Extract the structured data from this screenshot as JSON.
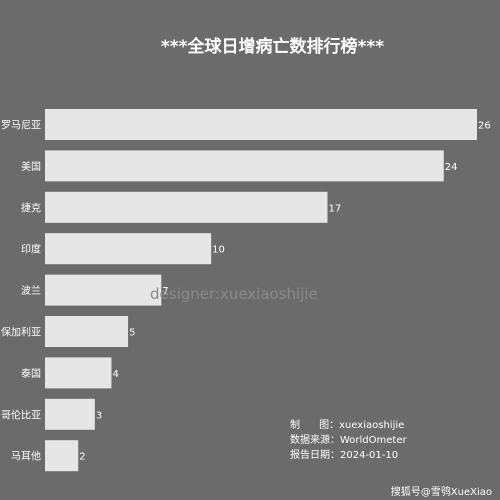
{
  "chart_data": {
    "type": "bar",
    "orientation": "horizontal",
    "title": "***全球日增病亡数排行榜***",
    "categories": [
      "罗马尼亚",
      "美国",
      "捷克",
      "印度",
      "波兰",
      "保加利亚",
      "泰国",
      "哥伦比亚",
      "马耳他"
    ],
    "values": [
      26,
      24,
      17,
      10,
      7,
      5,
      4,
      3,
      2
    ],
    "xlim": [
      0,
      26
    ],
    "grid": false,
    "legend": "none",
    "colors": {
      "bar": "#e6e6e6",
      "background": "#6b6b6b",
      "text": "#ffffff"
    }
  },
  "watermark": "designer:xuexiaoshijie",
  "notes": [
    "制      图：xuexiaoshijie",
    "数据来源：WorldOmeter",
    "报告日期：2024-01-10"
  ],
  "footer": "搜狐号@雪鸮XueXiao"
}
